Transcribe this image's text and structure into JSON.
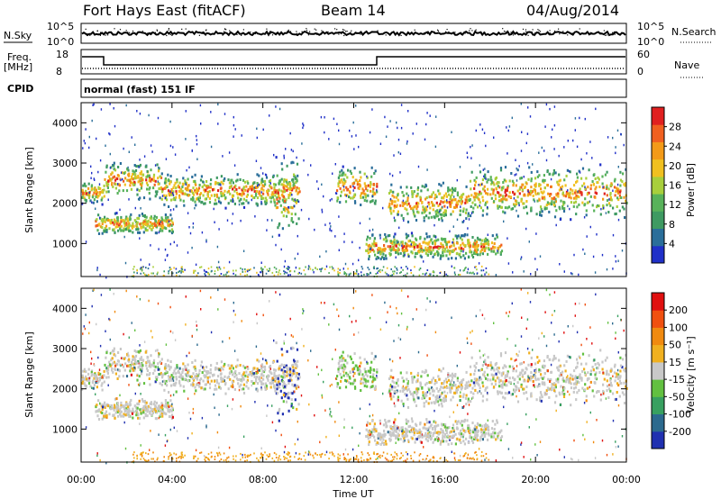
{
  "header": {
    "station": "Fort Hays East (fitACF)",
    "beam": "Beam 14",
    "date": "04/Aug/2014"
  },
  "top_panel": {
    "nsky_label": "N.Sky",
    "nsearch_label": "N.Search",
    "nsky_ticks": [
      "10^5",
      "10^0"
    ],
    "nsearch_ticks": [
      "10^5",
      "10^0"
    ],
    "freq_label": "Freq.",
    "freq_unit": "[MHz]",
    "freq_ticks": [
      "18",
      "8"
    ],
    "nave_label": "Nave",
    "nave_ticks": [
      "60",
      "0"
    ],
    "cpid_label": "CPID",
    "cpid_text": "normal (fast) 151 IF"
  },
  "chart_data": [
    {
      "type": "heatmap",
      "name": "power",
      "xlabel": "",
      "ylabel": "Slant Range [km]",
      "x_ticks": [
        "00:00",
        "04:00",
        "08:00",
        "12:00",
        "16:00",
        "20:00",
        "00:00"
      ],
      "y_ticks": [
        "1000",
        "2000",
        "3000",
        "4000"
      ],
      "ylim": [
        180,
        4500
      ],
      "xlim_hours": [
        0,
        24
      ],
      "colorbar": {
        "label": "Power [dB]",
        "ticks": [
          "4",
          "8",
          "12",
          "16",
          "20",
          "24",
          "28"
        ],
        "colors": [
          "#2030c8",
          "#2a6e9a",
          "#3e9a62",
          "#58b25a",
          "#a8cf3c",
          "#f0c020",
          "#f39a18",
          "#f06020",
          "#e02020"
        ]
      },
      "echo_bands": [
        {
          "t0": 0.0,
          "t1": 1.0,
          "r0": 2000,
          "r1": 2600
        },
        {
          "t0": 0.6,
          "t1": 4.0,
          "r0": 1250,
          "r1": 1800
        },
        {
          "t0": 1.0,
          "t1": 3.5,
          "r0": 2100,
          "r1": 3100
        },
        {
          "t0": 3.5,
          "t1": 9.5,
          "r0": 1900,
          "r1": 2800
        },
        {
          "t0": 8.5,
          "t1": 9.6,
          "r0": 1200,
          "r1": 3200
        },
        {
          "t0": 11.2,
          "t1": 13.0,
          "r0": 1900,
          "r1": 3000
        },
        {
          "t0": 12.5,
          "t1": 18.5,
          "r0": 600,
          "r1": 1300
        },
        {
          "t0": 13.5,
          "t1": 17.0,
          "r0": 1500,
          "r1": 2600
        },
        {
          "t0": 17.0,
          "t1": 24.0,
          "r0": 1600,
          "r1": 3000
        }
      ]
    },
    {
      "type": "heatmap",
      "name": "velocity",
      "xlabel": "Time UT",
      "ylabel": "Slant Range [km]",
      "x_ticks": [
        "00:00",
        "04:00",
        "08:00",
        "12:00",
        "16:00",
        "20:00",
        "00:00"
      ],
      "y_ticks": [
        "1000",
        "2000",
        "3000",
        "4000"
      ],
      "ylim": [
        180,
        4500
      ],
      "xlim_hours": [
        0,
        24
      ],
      "colorbar": {
        "label": "Velocity [m s⁻¹]",
        "ticks": [
          "200",
          "100",
          "50",
          "15",
          "-15",
          "-50",
          "-100",
          "-200"
        ],
        "colors": [
          "#2030b0",
          "#2c6a8e",
          "#38a060",
          "#62c040",
          "#c8c8c8",
          "#f0b020",
          "#f08a10",
          "#f05010",
          "#e01010"
        ]
      }
    }
  ]
}
